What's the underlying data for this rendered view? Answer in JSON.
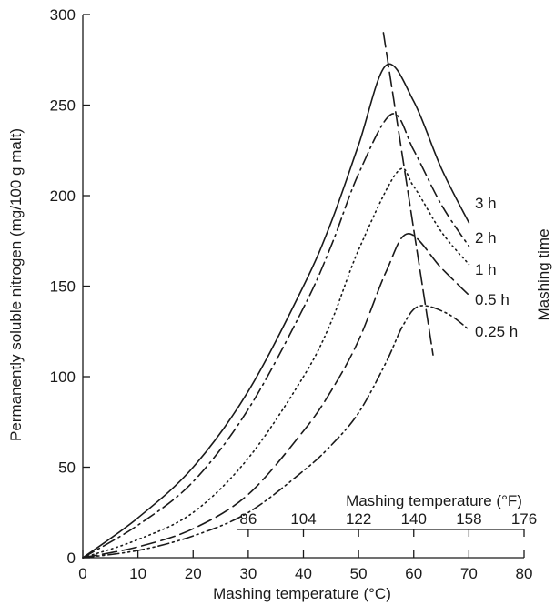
{
  "chart_data": {
    "type": "line",
    "title": "",
    "xlabel": "Mashing temperature (°C)",
    "ylabel": "Permanently soluble nitrogen (mg/100 g malt)",
    "x2label": "Mashing temperature (°F)",
    "legend_title": "Mashing time",
    "xlim": [
      0,
      80
    ],
    "ylim": [
      0,
      300
    ],
    "x_ticks": [
      0,
      10,
      20,
      30,
      40,
      50,
      60,
      70,
      80
    ],
    "y_ticks": [
      0,
      50,
      100,
      150,
      200,
      250,
      300
    ],
    "x2_ticks": [
      {
        "label": "86",
        "celsius": 30
      },
      {
        "label": "104",
        "celsius": 40
      },
      {
        "label": "122",
        "celsius": 50
      },
      {
        "label": "140",
        "celsius": 60
      },
      {
        "label": "158",
        "celsius": 70
      },
      {
        "label": "176",
        "celsius": 80
      }
    ],
    "grid": false,
    "legend_position": "right",
    "series": [
      {
        "name": "3 h",
        "dash": "solid",
        "x": [
          0,
          10,
          20,
          30,
          40,
          45,
          50,
          55,
          60,
          65,
          70
        ],
        "y": [
          0,
          22,
          50,
          92,
          150,
          185,
          228,
          272,
          252,
          215,
          185
        ]
      },
      {
        "name": "2 h",
        "dash": "dashdot",
        "x": [
          0,
          10,
          20,
          30,
          40,
          45,
          50,
          56,
          60,
          65,
          70
        ],
        "y": [
          0,
          18,
          42,
          82,
          138,
          172,
          212,
          245,
          225,
          195,
          172
        ]
      },
      {
        "name": "1 h",
        "dash": "dotted",
        "x": [
          0,
          10,
          20,
          30,
          40,
          45,
          50,
          57,
          60,
          65,
          70
        ],
        "y": [
          0,
          10,
          25,
          55,
          100,
          130,
          170,
          213,
          205,
          180,
          162
        ]
      },
      {
        "name": "0.5 h",
        "dash": "dashed",
        "x": [
          0,
          10,
          20,
          30,
          40,
          45,
          50,
          55,
          59,
          65,
          70
        ],
        "y": [
          0,
          6,
          16,
          35,
          70,
          92,
          120,
          158,
          179,
          160,
          145
        ]
      },
      {
        "name": "0.25 h",
        "dash": "dashdotdot",
        "x": [
          0,
          10,
          20,
          30,
          40,
          45,
          50,
          55,
          58,
          61,
          66,
          70
        ],
        "y": [
          0,
          4,
          12,
          25,
          48,
          62,
          80,
          108,
          128,
          139,
          135,
          126
        ]
      }
    ],
    "optimum_line": {
      "dash": "dashed",
      "x": [
        54.5,
        63.5
      ],
      "y": [
        290,
        112
      ]
    }
  }
}
